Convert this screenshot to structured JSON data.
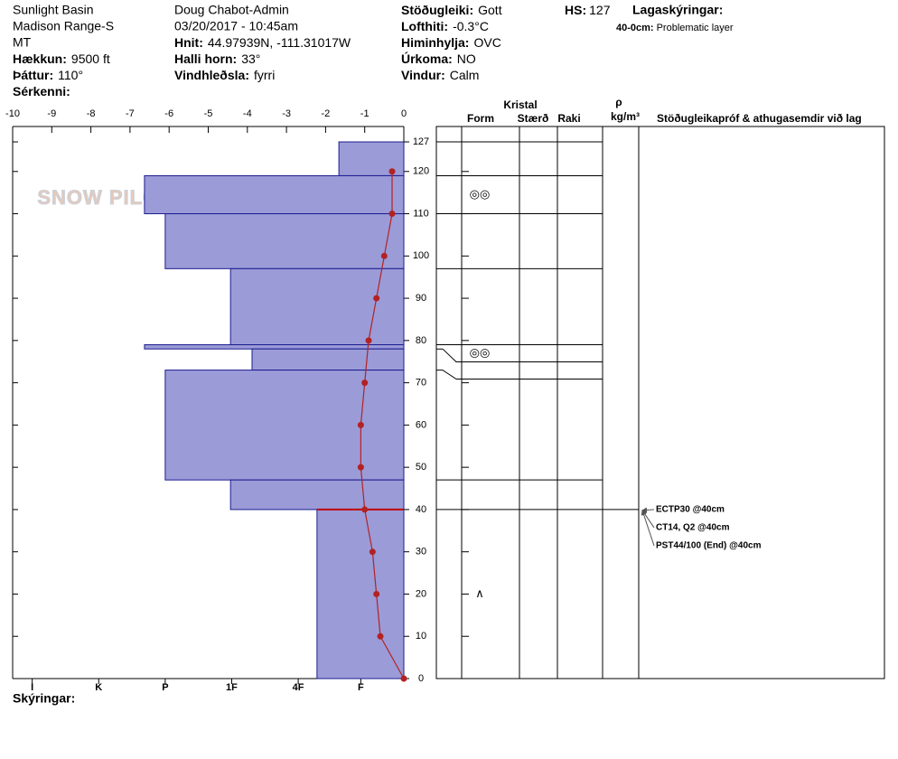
{
  "header": {
    "col1": [
      "Sunlight Basin",
      "Madison Range-S",
      "MT",
      {
        "label": "Hækkun:",
        "value": "9500 ft"
      },
      {
        "label": "Þáttur:",
        "value": "110°"
      },
      {
        "label": "Sérkenni:"
      }
    ],
    "col2": [
      "Doug Chabot-Admin",
      "03/20/2017 - 10:45am",
      {
        "label": "Hnit:",
        "value": "44.97939N, -111.31017W"
      },
      {
        "label": "Halli horn:",
        "value": "33°"
      },
      {
        "label": "Vindhleðsla:",
        "value": "fyrri"
      }
    ],
    "col3": [
      {
        "label": "Stöðugleiki:",
        "value": "Gott"
      },
      {
        "label": "Lofthiti:",
        "value": "-0.3°C"
      },
      {
        "label": "Himinhylja:",
        "value": "OVC"
      },
      {
        "label": "Úrkoma:",
        "value": "NO"
      },
      {
        "label": "Vindur:",
        "value": "Calm"
      }
    ],
    "hs": {
      "label": "HS:",
      "value": 127
    },
    "legend": {
      "title": "Lagaskýringar:",
      "entries": [
        {
          "range": "40-0cm:",
          "text": "Problematic layer"
        }
      ]
    },
    "watermark": "SNOW PILOT"
  },
  "chart_data": {
    "type": "snow_profile",
    "xlim": [
      -10,
      0
    ],
    "xticks": [
      -10,
      -9,
      -8,
      -7,
      -6,
      -5,
      -4,
      -3,
      -2,
      -1,
      0
    ],
    "ylim": [
      0,
      130
    ],
    "yticks": [
      0,
      10,
      20,
      30,
      40,
      50,
      60,
      70,
      80,
      90,
      100,
      110,
      120,
      127
    ],
    "hardness_ticks": [
      {
        "value": -9.5,
        "label": "I"
      },
      {
        "value": -7.8,
        "label": "K"
      },
      {
        "value": -6.1,
        "label": "P"
      },
      {
        "value": -4.4,
        "label": "1F"
      },
      {
        "value": -2.7,
        "label": "4F"
      },
      {
        "value": -1.1,
        "label": "F"
      }
    ],
    "boundaries": [
      127,
      119,
      110,
      97,
      79,
      78,
      73,
      47,
      40,
      0
    ],
    "hardness": [
      -1.66,
      -6.63,
      -6.1,
      -4.43,
      -6.63,
      -3.88,
      -6.1,
      -4.43,
      -2.22
    ],
    "bar_color": "#9b9bd8",
    "forms": [
      null,
      "◎◎",
      null,
      null,
      "◎◎",
      null,
      null,
      null,
      "∧"
    ],
    "temperature": {
      "depth": [
        120,
        110,
        100,
        90,
        80,
        70,
        60,
        50,
        40,
        30,
        20,
        10,
        0
      ],
      "values": [
        -0.3,
        -0.3,
        -0.5,
        -0.7,
        -0.9,
        -1.0,
        -1.1,
        -1.1,
        -1.0,
        -0.8,
        -0.7,
        -0.6,
        0
      ],
      "color": "#b22222"
    },
    "table": {
      "group": "Kristal",
      "density_symbol": "ρ",
      "columns": [
        "Form",
        "Stærð",
        "Raki",
        "kg/m³",
        "Stöðugleikapróf & athugasemdir við lag"
      ]
    },
    "tests": [
      "ECTP30 @40cm",
      "CT14, Q2 @40cm",
      "PST44/100 (End) @40cm"
    ],
    "footer": "Skýringar:"
  }
}
